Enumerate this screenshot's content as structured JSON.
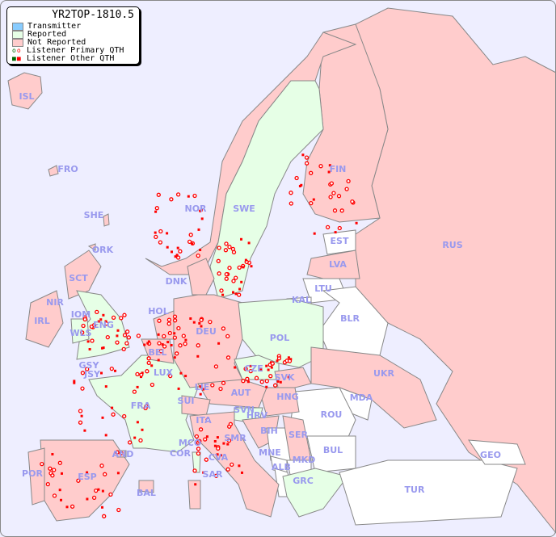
{
  "title": "YR2TOP-1810.5",
  "legend": {
    "items": [
      {
        "label": "Transmitter",
        "color": "#88ccff"
      },
      {
        "label": "Reported",
        "color": "#e6ffe6"
      },
      {
        "label": "Not Reported",
        "color": "#ffcccc"
      },
      {
        "label": "Listener Primary QTH",
        "symbol": "circle",
        "colors": [
          "#006600",
          "#ff0000"
        ]
      },
      {
        "label": "Listener Other QTH",
        "symbol": "square",
        "colors": [
          "#006600",
          "#ff0000"
        ]
      }
    ]
  },
  "colors": {
    "sea": "#eeeeff",
    "reported": "#e6ffe6",
    "not_reported": "#ffcccc",
    "no_data": "#ffffff",
    "label": "#9999ee",
    "listener": "#ff0000"
  },
  "countries": {
    "ISL": "not_reported",
    "FRO": "not_reported",
    "SHE": "not_reported",
    "ORK": "not_reported",
    "NOR": "not_reported",
    "SWE": "reported",
    "FIN": "not_reported",
    "RUS": "not_reported",
    "EST": "no_data",
    "LVA": "not_reported",
    "LTU": "no_data",
    "KAL": "no_data",
    "BLR": "no_data",
    "DNK": "not_reported",
    "SCT": "not_reported",
    "NIR": "not_reported",
    "IRL": "not_reported",
    "IOM": "not_reported",
    "ENG": "reported",
    "WLS": "reported",
    "GSY": "reported",
    "JSY": "reported",
    "HOL": "not_reported",
    "BEL": "not_reported",
    "LUX": "not_reported",
    "DEU": "not_reported",
    "POL": "reported",
    "CZE": "reported",
    "SVK": "not_reported",
    "UKR": "not_reported",
    "FRA": "reported",
    "SUI": "not_reported",
    "LIE": "not_reported",
    "AUT": "not_reported",
    "HNG": "not_reported",
    "MDA": "no_data",
    "ROU": "no_data",
    "SVN": "reported",
    "HRV": "not_reported",
    "ITA": "not_reported",
    "SMR": "not_reported",
    "CVA": "not_reported",
    "MCO": "reported",
    "COR": "reported",
    "SAR": "not_reported",
    "BIH": "no_data",
    "SER": "not_reported",
    "MNE": "no_data",
    "ALB": "no_data",
    "MKD": "no_data",
    "BUL": "no_data",
    "GRC": "reported",
    "TUR": "no_data",
    "GEO": "no_data",
    "AND": "not_reported",
    "ESP": "not_reported",
    "POR": "not_reported",
    "BAL": "not_reported"
  }
}
